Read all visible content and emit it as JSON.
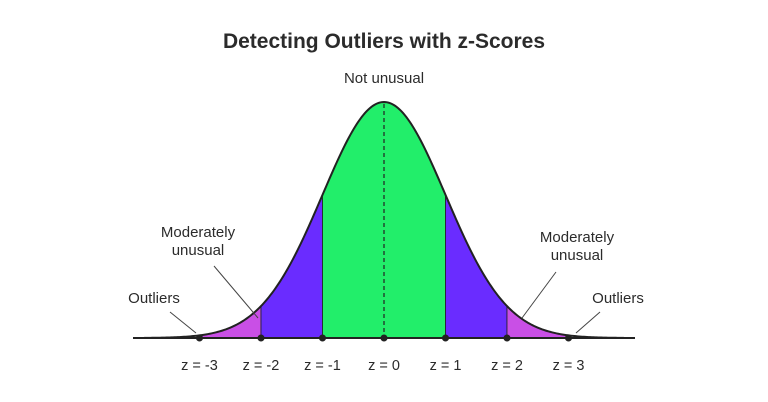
{
  "title": "Detecting Outliers with z-Scores",
  "labels": {
    "center": "Not unusual",
    "left_moderate": [
      "Moderately",
      "unusual"
    ],
    "right_moderate": [
      "Moderately",
      "unusual"
    ],
    "left_outliers": "Outliers",
    "right_outliers": "Outliers"
  },
  "colors": {
    "not_unusual": "#22ee6a",
    "moderately_unusual_inner": "#6a2cff",
    "moderately_unusual_outer": "#c94fe6",
    "outline": "#222222"
  },
  "chart_data": {
    "type": "area",
    "distribution": "standard normal",
    "xlim": [
      -3.9,
      3.9
    ],
    "ticks": [
      {
        "z": -3,
        "label": "z = -3"
      },
      {
        "z": -2,
        "label": "z = -2"
      },
      {
        "z": -1,
        "label": "z = -1"
      },
      {
        "z": 0,
        "label": "z = 0"
      },
      {
        "z": 1,
        "label": "z = 1"
      },
      {
        "z": 2,
        "label": "z = 2"
      },
      {
        "z": 3,
        "label": "z = 3"
      }
    ],
    "regions": [
      {
        "from": -3,
        "to": -2,
        "color": "#c94fe6"
      },
      {
        "from": -2,
        "to": -1,
        "color": "#6a2cff"
      },
      {
        "from": -1,
        "to": 1,
        "color": "#22ee6a"
      },
      {
        "from": 1,
        "to": 2,
        "color": "#6a2cff"
      },
      {
        "from": 2,
        "to": 3,
        "color": "#c94fe6"
      }
    ]
  }
}
